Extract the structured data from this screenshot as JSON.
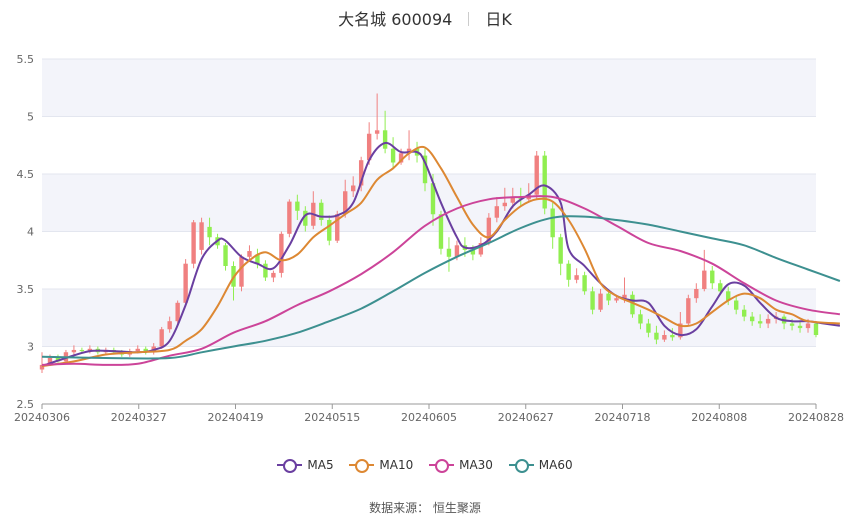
{
  "header": {
    "stock_name": "大名城 600094",
    "period": "日K"
  },
  "source": "数据来源： 恒生聚源",
  "chart_data": {
    "type": "candlestick",
    "ylim": [
      2.5,
      5.5
    ],
    "yticks": [
      "2.5",
      "3",
      "3.5",
      "4",
      "4.5",
      "5",
      "5.5"
    ],
    "x_labels": [
      "20240306",
      "20240327",
      "20240419",
      "20240515",
      "20240605",
      "20240627",
      "20240718",
      "20240808",
      "20240828"
    ],
    "grid": true,
    "legend_position": "bottom",
    "colors": {
      "up": "#f08080",
      "down": "#90ee50",
      "MA5": "#6a3fa0",
      "MA10": "#dd8833",
      "MA30": "#cc4499",
      "MA60": "#3d9090"
    },
    "candles": [
      [
        2.8,
        2.84,
        2.77,
        2.95
      ],
      [
        2.84,
        2.9,
        2.83,
        2.93
      ],
      [
        2.9,
        2.87,
        2.86,
        2.93
      ],
      [
        2.87,
        2.95,
        2.86,
        2.97
      ],
      [
        2.95,
        2.97,
        2.92,
        3.01
      ],
      [
        2.97,
        2.96,
        2.94,
        2.99
      ],
      [
        2.96,
        2.98,
        2.94,
        3.01
      ],
      [
        2.98,
        2.95,
        2.93,
        3.0
      ],
      [
        2.95,
        2.97,
        2.93,
        2.99
      ],
      [
        2.97,
        2.95,
        2.93,
        2.99
      ],
      [
        2.95,
        2.93,
        2.91,
        2.97
      ],
      [
        2.93,
        2.96,
        2.91,
        2.98
      ],
      [
        2.96,
        2.98,
        2.94,
        3.01
      ],
      [
        2.98,
        2.95,
        2.93,
        3.0
      ],
      [
        2.95,
        3.0,
        2.93,
        3.03
      ],
      [
        3.0,
        3.15,
        2.98,
        3.17
      ],
      [
        3.15,
        3.22,
        3.12,
        3.26
      ],
      [
        3.22,
        3.38,
        3.2,
        3.4
      ],
      [
        3.38,
        3.72,
        3.35,
        3.76
      ],
      [
        3.72,
        4.08,
        3.68,
        4.1
      ],
      [
        3.84,
        4.08,
        3.8,
        4.12
      ],
      [
        4.04,
        3.95,
        3.88,
        4.12
      ],
      [
        3.95,
        3.88,
        3.85,
        3.98
      ],
      [
        3.88,
        3.7,
        3.66,
        3.9
      ],
      [
        3.7,
        3.52,
        3.4,
        3.74
      ],
      [
        3.52,
        3.78,
        3.48,
        3.8
      ],
      [
        3.78,
        3.83,
        3.74,
        3.88
      ],
      [
        3.8,
        3.72,
        3.68,
        3.85
      ],
      [
        3.72,
        3.6,
        3.57,
        3.75
      ],
      [
        3.6,
        3.64,
        3.56,
        3.66
      ],
      [
        3.64,
        3.98,
        3.6,
        4.0
      ],
      [
        3.98,
        4.26,
        3.95,
        4.28
      ],
      [
        4.26,
        4.18,
        4.1,
        4.32
      ],
      [
        4.18,
        4.05,
        4.0,
        4.22
      ],
      [
        4.05,
        4.25,
        4.02,
        4.35
      ],
      [
        4.25,
        4.1,
        4.05,
        4.28
      ],
      [
        4.1,
        3.92,
        3.88,
        4.14
      ],
      [
        3.92,
        4.15,
        3.9,
        4.18
      ],
      [
        4.15,
        4.35,
        4.12,
        4.45
      ],
      [
        4.35,
        4.4,
        4.3,
        4.48
      ],
      [
        4.4,
        4.62,
        4.35,
        4.65
      ],
      [
        4.62,
        4.85,
        4.58,
        4.95
      ],
      [
        4.85,
        4.88,
        4.8,
        5.2
      ],
      [
        4.88,
        4.72,
        4.68,
        5.05
      ],
      [
        4.72,
        4.6,
        4.55,
        4.82
      ],
      [
        4.6,
        4.68,
        4.58,
        4.72
      ],
      [
        4.68,
        4.72,
        4.62,
        4.88
      ],
      [
        4.72,
        4.66,
        4.6,
        4.78
      ],
      [
        4.66,
        4.42,
        4.35,
        4.72
      ],
      [
        4.42,
        4.15,
        4.05,
        4.5
      ],
      [
        4.15,
        3.85,
        3.8,
        4.18
      ],
      [
        3.85,
        3.78,
        3.65,
        3.95
      ],
      [
        3.78,
        3.88,
        3.75,
        3.92
      ],
      [
        3.88,
        3.84,
        3.78,
        3.95
      ],
      [
        3.84,
        3.8,
        3.75,
        3.88
      ],
      [
        3.8,
        3.9,
        3.78,
        3.95
      ],
      [
        3.9,
        4.12,
        3.88,
        4.16
      ],
      [
        4.12,
        4.22,
        4.08,
        4.3
      ],
      [
        4.22,
        4.25,
        4.18,
        4.38
      ],
      [
        4.25,
        4.3,
        4.2,
        4.38
      ],
      [
        4.3,
        4.28,
        4.22,
        4.38
      ],
      [
        4.28,
        4.32,
        4.25,
        4.42
      ],
      [
        4.32,
        4.66,
        4.28,
        4.7
      ],
      [
        4.66,
        4.2,
        4.15,
        4.7
      ],
      [
        4.2,
        3.95,
        3.85,
        4.25
      ],
      [
        3.95,
        3.72,
        3.62,
        3.98
      ],
      [
        3.72,
        3.58,
        3.52,
        3.75
      ],
      [
        3.58,
        3.62,
        3.55,
        3.68
      ],
      [
        3.62,
        3.48,
        3.45,
        3.65
      ],
      [
        3.48,
        3.32,
        3.28,
        3.52
      ],
      [
        3.32,
        3.46,
        3.3,
        3.5
      ],
      [
        3.46,
        3.4,
        3.36,
        3.48
      ],
      [
        3.4,
        3.42,
        3.38,
        3.45
      ],
      [
        3.42,
        3.45,
        3.38,
        3.6
      ],
      [
        3.45,
        3.28,
        3.25,
        3.48
      ],
      [
        3.28,
        3.2,
        3.15,
        3.32
      ],
      [
        3.2,
        3.12,
        3.08,
        3.24
      ],
      [
        3.12,
        3.06,
        3.02,
        3.18
      ],
      [
        3.06,
        3.1,
        3.04,
        3.14
      ],
      [
        3.1,
        3.08,
        3.05,
        3.16
      ],
      [
        3.08,
        3.2,
        3.06,
        3.3
      ],
      [
        3.2,
        3.42,
        3.18,
        3.45
      ],
      [
        3.42,
        3.5,
        3.38,
        3.55
      ],
      [
        3.5,
        3.66,
        3.48,
        3.84
      ],
      [
        3.66,
        3.55,
        3.5,
        3.7
      ],
      [
        3.55,
        3.48,
        3.45,
        3.58
      ],
      [
        3.48,
        3.4,
        3.36,
        3.52
      ],
      [
        3.4,
        3.32,
        3.28,
        3.44
      ],
      [
        3.32,
        3.26,
        3.22,
        3.36
      ],
      [
        3.26,
        3.22,
        3.18,
        3.3
      ],
      [
        3.22,
        3.2,
        3.16,
        3.28
      ],
      [
        3.2,
        3.24,
        3.16,
        3.28
      ],
      [
        3.24,
        3.26,
        3.2,
        3.3
      ],
      [
        3.26,
        3.2,
        3.15,
        3.28
      ],
      [
        3.2,
        3.18,
        3.14,
        3.24
      ],
      [
        3.18,
        3.16,
        3.12,
        3.22
      ],
      [
        3.16,
        3.2,
        3.12,
        3.24
      ],
      [
        3.2,
        3.1,
        3.08,
        3.22
      ]
    ],
    "series": [
      {
        "name": "MA5",
        "values": [
          [
            0,
            2.83
          ],
          [
            3,
            2.9
          ],
          [
            6,
            2.96
          ],
          [
            9,
            2.96
          ],
          [
            12,
            2.95
          ],
          [
            14,
            2.97
          ],
          [
            16,
            3.05
          ],
          [
            18,
            3.36
          ],
          [
            20,
            3.76
          ],
          [
            22,
            3.92
          ],
          [
            23,
            3.92
          ],
          [
            25,
            3.78
          ],
          [
            27,
            3.72
          ],
          [
            29,
            3.68
          ],
          [
            31,
            3.88
          ],
          [
            33,
            4.14
          ],
          [
            35,
            4.13
          ],
          [
            37,
            4.14
          ],
          [
            39,
            4.25
          ],
          [
            41,
            4.62
          ],
          [
            43,
            4.77
          ],
          [
            45,
            4.69
          ],
          [
            47,
            4.69
          ],
          [
            48,
            4.6
          ],
          [
            50,
            4.25
          ],
          [
            52,
            3.95
          ],
          [
            53,
            3.86
          ],
          [
            55,
            3.88
          ],
          [
            57,
            4.0
          ],
          [
            59,
            4.22
          ],
          [
            61,
            4.32
          ],
          [
            63,
            4.4
          ],
          [
            65,
            4.25
          ],
          [
            66,
            3.85
          ],
          [
            68,
            3.7
          ],
          [
            70,
            3.55
          ],
          [
            72,
            3.44
          ],
          [
            74,
            3.4
          ],
          [
            76,
            3.38
          ],
          [
            78,
            3.18
          ],
          [
            80,
            3.1
          ],
          [
            82,
            3.15
          ],
          [
            84,
            3.35
          ],
          [
            86,
            3.54
          ],
          [
            88,
            3.53
          ],
          [
            90,
            3.38
          ],
          [
            92,
            3.25
          ],
          [
            94,
            3.22
          ],
          [
            96,
            3.22
          ],
          [
            98,
            3.2
          ],
          [
            100,
            3.18
          ]
        ]
      },
      {
        "name": "MA10",
        "values": [
          [
            0,
            2.83
          ],
          [
            4,
            2.87
          ],
          [
            8,
            2.93
          ],
          [
            12,
            2.95
          ],
          [
            16,
            2.97
          ],
          [
            18,
            3.05
          ],
          [
            20,
            3.15
          ],
          [
            22,
            3.35
          ],
          [
            24,
            3.6
          ],
          [
            26,
            3.75
          ],
          [
            28,
            3.82
          ],
          [
            30,
            3.75
          ],
          [
            32,
            3.8
          ],
          [
            34,
            3.95
          ],
          [
            36,
            4.05
          ],
          [
            38,
            4.15
          ],
          [
            40,
            4.25
          ],
          [
            42,
            4.45
          ],
          [
            44,
            4.55
          ],
          [
            46,
            4.68
          ],
          [
            48,
            4.73
          ],
          [
            50,
            4.55
          ],
          [
            52,
            4.3
          ],
          [
            54,
            4.06
          ],
          [
            56,
            3.95
          ],
          [
            58,
            4.1
          ],
          [
            60,
            4.22
          ],
          [
            62,
            4.28
          ],
          [
            64,
            4.26
          ],
          [
            66,
            4.1
          ],
          [
            68,
            3.85
          ],
          [
            70,
            3.55
          ],
          [
            72,
            3.44
          ],
          [
            74,
            3.38
          ],
          [
            76,
            3.32
          ],
          [
            78,
            3.25
          ],
          [
            80,
            3.18
          ],
          [
            82,
            3.2
          ],
          [
            84,
            3.3
          ],
          [
            86,
            3.4
          ],
          [
            88,
            3.46
          ],
          [
            90,
            3.42
          ],
          [
            92,
            3.32
          ],
          [
            94,
            3.28
          ],
          [
            96,
            3.22
          ],
          [
            100,
            3.2
          ]
        ]
      },
      {
        "name": "MA30",
        "values": [
          [
            0,
            2.84
          ],
          [
            4,
            2.85
          ],
          [
            8,
            2.84
          ],
          [
            12,
            2.85
          ],
          [
            16,
            2.92
          ],
          [
            20,
            2.98
          ],
          [
            24,
            3.12
          ],
          [
            28,
            3.22
          ],
          [
            32,
            3.36
          ],
          [
            36,
            3.48
          ],
          [
            40,
            3.63
          ],
          [
            44,
            3.82
          ],
          [
            48,
            4.05
          ],
          [
            52,
            4.2
          ],
          [
            56,
            4.28
          ],
          [
            60,
            4.3
          ],
          [
            64,
            4.3
          ],
          [
            68,
            4.2
          ],
          [
            72,
            4.05
          ],
          [
            76,
            3.9
          ],
          [
            80,
            3.83
          ],
          [
            84,
            3.72
          ],
          [
            88,
            3.55
          ],
          [
            92,
            3.4
          ],
          [
            96,
            3.32
          ],
          [
            100,
            3.28
          ]
        ]
      },
      {
        "name": "MA60",
        "values": [
          [
            0,
            2.91
          ],
          [
            8,
            2.9
          ],
          [
            16,
            2.9
          ],
          [
            20,
            2.95
          ],
          [
            24,
            3.0
          ],
          [
            28,
            3.05
          ],
          [
            32,
            3.12
          ],
          [
            36,
            3.22
          ],
          [
            40,
            3.33
          ],
          [
            44,
            3.48
          ],
          [
            48,
            3.64
          ],
          [
            52,
            3.78
          ],
          [
            56,
            3.9
          ],
          [
            60,
            4.03
          ],
          [
            64,
            4.12
          ],
          [
            68,
            4.13
          ],
          [
            72,
            4.1
          ],
          [
            76,
            4.06
          ],
          [
            80,
            4.0
          ],
          [
            84,
            3.94
          ],
          [
            88,
            3.88
          ],
          [
            92,
            3.77
          ],
          [
            96,
            3.67
          ],
          [
            100,
            3.57
          ]
        ]
      }
    ]
  }
}
